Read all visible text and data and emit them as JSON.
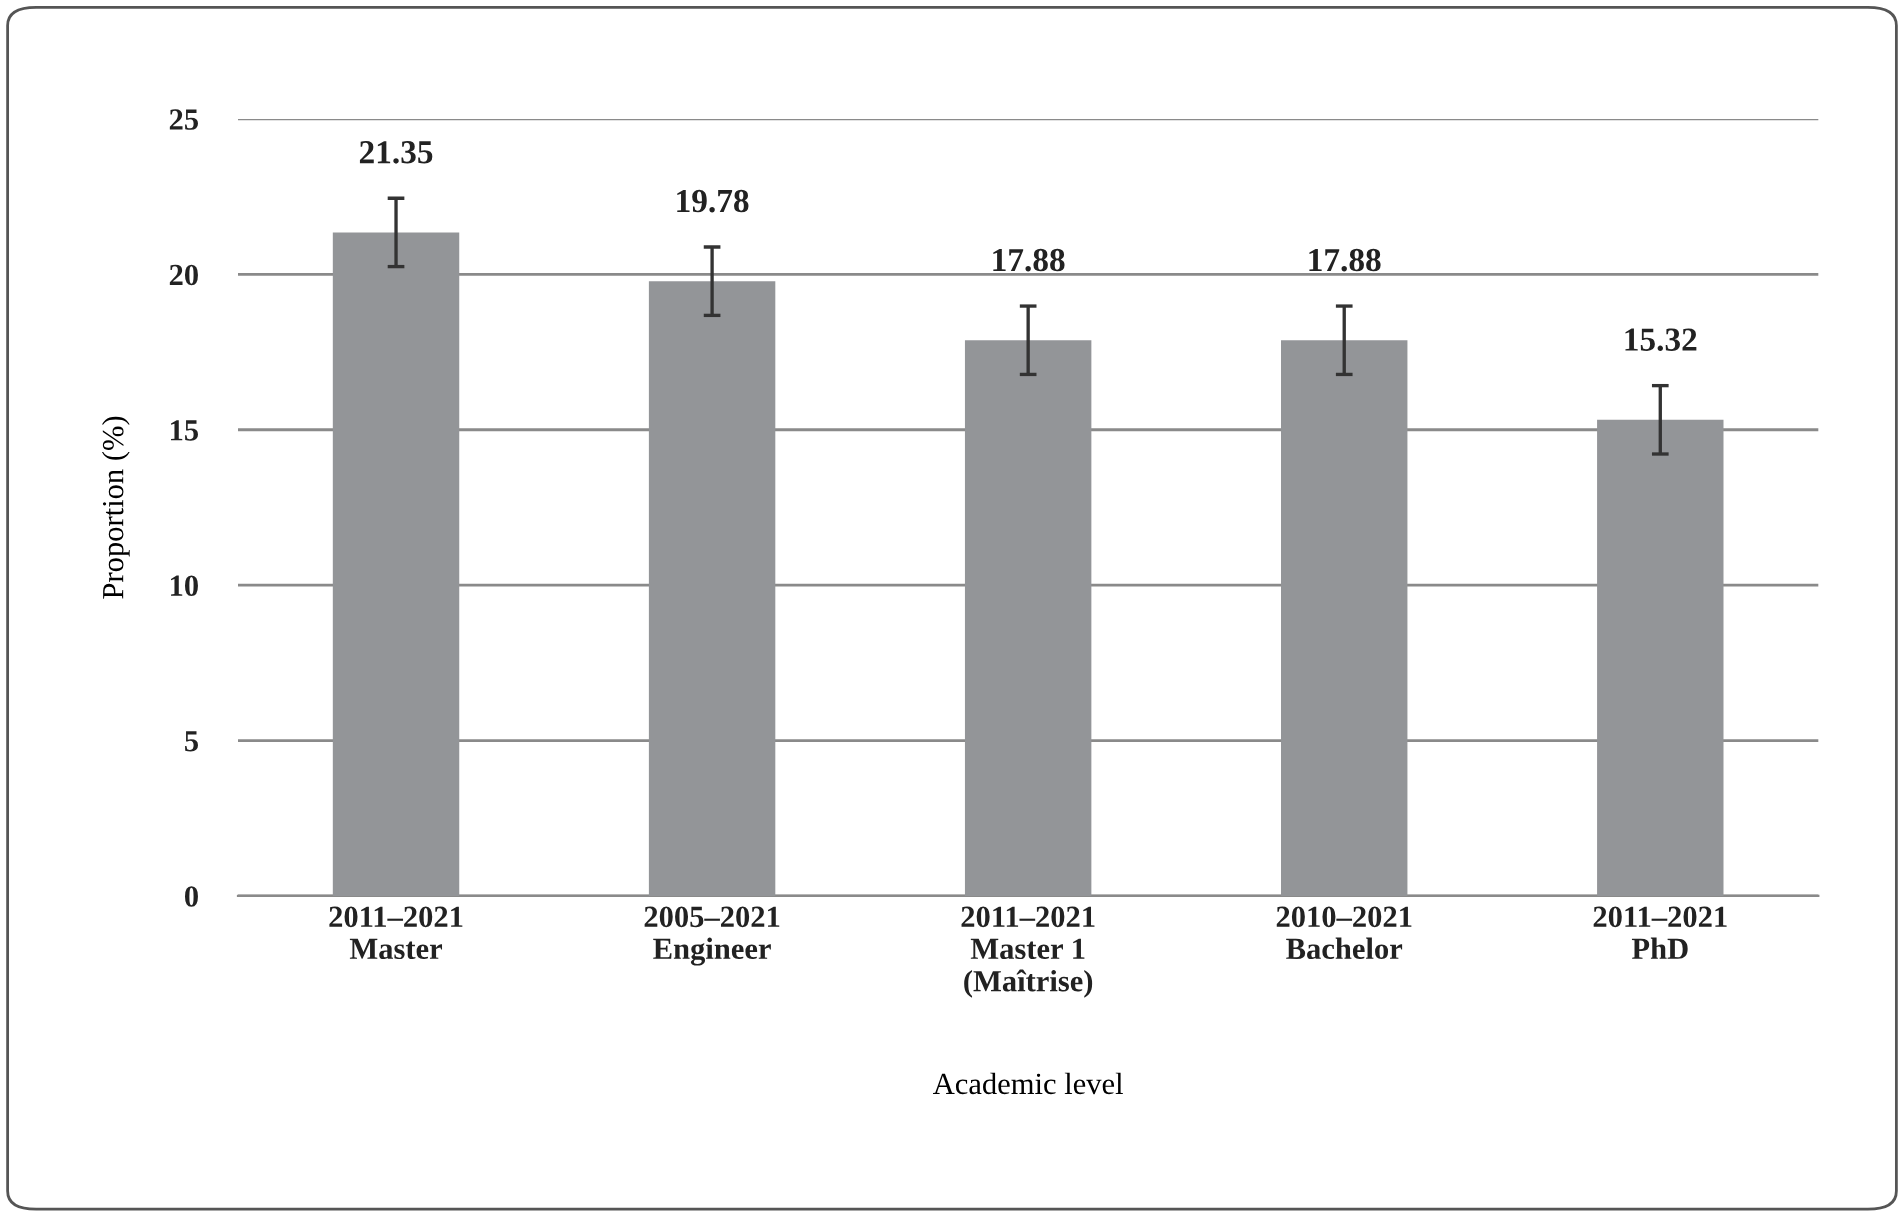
{
  "chart_data": {
    "type": "bar",
    "xlabel": "Academic level",
    "ylabel": "Proportion (%)",
    "categories": [
      "2011–2021\nMaster",
      "2005–2021\nEngineer",
      "2011–2021\nMaster 1\n(Maîtrise)",
      "2010–2021\nBachelor",
      "2011–2021\nPhD"
    ],
    "values": [
      21.35,
      19.78,
      17.88,
      17.88,
      15.32
    ],
    "errors": [
      1.1,
      1.1,
      1.1,
      1.1,
      1.1
    ],
    "color": "#939598",
    "ylim": [
      0,
      25
    ],
    "yticks": [
      0,
      5,
      10,
      15,
      20,
      25
    ],
    "grid": "y",
    "data_labels": true
  }
}
